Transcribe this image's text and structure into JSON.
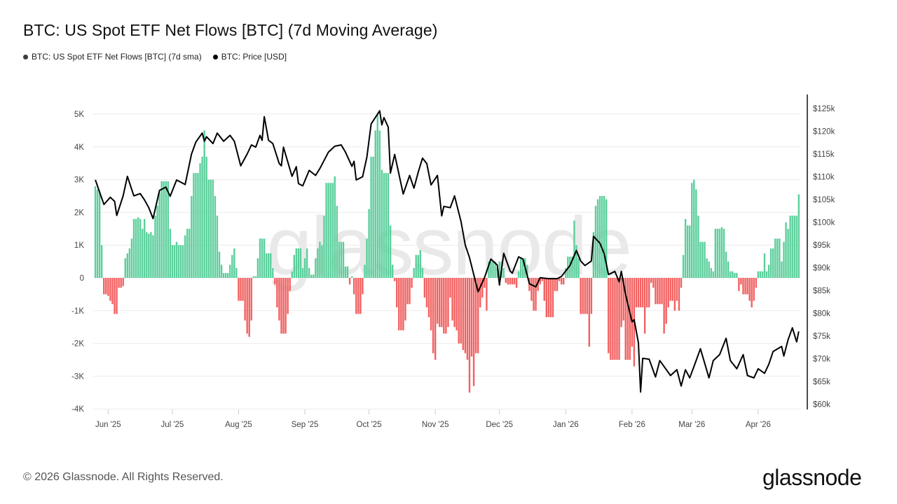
{
  "title": "BTC: US Spot ETF Net Flows [BTC] (7d Moving Average)",
  "legend": [
    {
      "label": "BTC: US Spot ETF Net Flows [BTC] (7d sma)",
      "color": "#3d3d3d"
    },
    {
      "label": "BTC: Price [USD]",
      "color": "#000000"
    }
  ],
  "footer": "© 2026 Glassnode. All Rights Reserved.",
  "logo": "glassnode",
  "watermark": "glassnode",
  "chart_data": {
    "type": "bar+line",
    "title": "BTC: US Spot ETF Net Flows [BTC] (7d Moving Average)",
    "grid": true,
    "legend_position": "top-left",
    "colors": {
      "inflow": "#5ccf9c",
      "outflow": "#f26161",
      "price": "#000000"
    },
    "x_ticks": [
      "Jun '25",
      "Jul '25",
      "Aug '25",
      "Sep '25",
      "Oct '25",
      "Nov '25",
      "Dec '25",
      "Jan '26",
      "Feb '26",
      "Mar '26",
      "Apr '26"
    ],
    "y_left": {
      "ticks": [
        "5K",
        "4K",
        "3K",
        "2K",
        "1K",
        "0",
        "-1K",
        "-2K",
        "-3K",
        "-4K"
      ],
      "range": [
        -4000,
        5000
      ]
    },
    "y_right": {
      "ticks": [
        "$125k",
        "$120k",
        "$115k",
        "$110k",
        "$105k",
        "$100k",
        "$95k",
        "$90k",
        "$85k",
        "$80k",
        "$75k",
        "$70k",
        "$65k",
        "$60k"
      ],
      "range": [
        60000,
        125000
      ],
      "scale": "linear"
    },
    "flows_k_btc_by_month": {
      "2025-05": [
        null,
        null,
        null,
        null,
        null,
        null,
        null,
        null,
        null,
        null,
        null,
        null,
        null,
        null,
        null,
        null,
        null,
        null,
        null,
        null,
        null,
        null,
        null,
        null,
        null,
        2.8,
        2.7,
        2.6,
        1.0,
        -0.5,
        -0.5
      ],
      "2025-06": [
        -0.55,
        -0.7,
        -0.8,
        -1.1,
        -1.1,
        -0.3,
        -0.3,
        -0.25,
        0.6,
        0.75,
        0.9,
        1.2,
        1.8,
        1.8,
        1.85,
        1.8,
        1.5,
        1.8,
        1.4,
        1.35,
        1.4,
        1.3,
        1.9,
        2.2,
        2.6,
        2.95,
        2.95,
        2.95,
        2.95,
        1.5
      ],
      "2025-07": [
        1.0,
        1.0,
        1.1,
        1.0,
        1.0,
        1.0,
        1.3,
        1.5,
        1.5,
        2.5,
        3.2,
        3.2,
        3.2,
        3.5,
        3.7,
        4.5,
        3.7,
        3.0,
        3.0,
        3.0,
        2.5,
        1.9,
        0.8,
        0.4,
        0.15,
        0.15,
        0.15,
        0.4,
        0.7,
        0.9,
        0.3
      ],
      "2025-08": [
        -0.7,
        -0.7,
        -0.7,
        -1.3,
        -1.7,
        -1.8,
        -1.3,
        0.05,
        0.05,
        0.6,
        1.2,
        1.2,
        1.2,
        0.75,
        0.75,
        0.75,
        0.3,
        -0.2,
        -0.9,
        -1.3,
        -1.7,
        -1.7,
        -1.7,
        -1.1,
        -0.4,
        0.2,
        0.7,
        0.9,
        0.9,
        0.9,
        0.3
      ],
      "2025-09": [
        0.6,
        0.9,
        0.3,
        0.1,
        0.1,
        0.6,
        0.9,
        1.1,
        1.0,
        1.9,
        2.9,
        2.9,
        2.9,
        2.9,
        3.1,
        2.2,
        1.1,
        1.1,
        1.1,
        0.35,
        0.35,
        -0.2,
        0.05,
        -0.5,
        -1.1,
        -1.1,
        -1.1,
        -0.5,
        0.4,
        1.2
      ],
      "2025-10": [
        2.1,
        3.7,
        3.7,
        4.5,
        5.0,
        4.5,
        3.3,
        3.2,
        3.2,
        3.2,
        1.6,
        0.4,
        -0.1,
        -0.9,
        -1.6,
        -1.6,
        -1.6,
        -1.3,
        -0.8,
        -0.8,
        -0.3,
        0.3,
        0.7,
        0.7,
        0.85,
        0.3,
        -0.6,
        -0.9,
        -1.2,
        -1.6,
        -2.3
      ],
      "2025-11": [
        -2.5,
        -1.4,
        -1.5,
        -1.5,
        -1.7,
        -1.7,
        -1.5,
        -0.6,
        -1.3,
        -1.5,
        -1.6,
        -2.0,
        -2.0,
        -2.2,
        -2.3,
        -2.5,
        -3.5,
        -2.4,
        -3.3,
        -2.3,
        -2.3,
        -0.9,
        -0.6,
        -0.3,
        -1.0,
        0.5,
        0.5,
        0.5,
        0.5,
        0.3
      ],
      "2025-12": [
        0.5,
        0.5,
        0.3,
        -0.15,
        -0.2,
        -0.2,
        -0.2,
        -0.2,
        -0.3,
        0.2,
        0.6,
        0.6,
        0.6,
        0.4,
        -0.4,
        -0.7,
        -1.0,
        -1.0,
        -0.4,
        -0.2,
        -0.1,
        -0.7,
        -1.2,
        -1.2,
        -1.2,
        -1.2,
        -0.4,
        -0.4,
        -0.1,
        -0.2,
        -0.2
      ],
      "2026-01": [
        0.3,
        0.65,
        0.65,
        0.65,
        1.75,
        1.0,
        0.6,
        -1.1,
        -1.1,
        -1.1,
        -1.1,
        -2.1,
        -1.1,
        1.4,
        2.2,
        2.4,
        2.5,
        2.5,
        2.5,
        2.4,
        -2.3,
        -2.5,
        -2.5,
        -2.5,
        -2.5,
        -2.5,
        -1.5,
        -1.3,
        -2.5,
        -2.5,
        -2.5
      ],
      "2026-02": [
        -2.1,
        -2.7,
        -0.9,
        -0.9,
        -0.9,
        -0.9,
        -1.7,
        -0.9,
        -0.9,
        -0.15,
        -0.3,
        -0.8,
        -0.8,
        -0.8,
        -0.8,
        -1.7,
        -1.4,
        -0.9,
        -0.7,
        -0.7,
        -1.0,
        -0.7,
        -1.0,
        -0.3,
        0.7,
        1.8,
        1.6,
        1.6
      ],
      "2026-03": [
        2.9,
        3.0,
        2.7,
        1.9,
        1.1,
        1.1,
        1.1,
        0.6,
        0.5,
        0.3,
        0.2,
        1.5,
        1.5,
        1.5,
        1.55,
        1.5,
        0.8,
        0.5,
        0.2,
        0.2,
        0.15,
        0.15,
        -0.4,
        -0.2,
        -0.5,
        -0.5,
        -0.5,
        -0.7,
        -0.9,
        -0.7,
        -0.3
      ],
      "2026-04": [
        0.2,
        0.2,
        0.2,
        0.75,
        0.2,
        0.4,
        0.9,
        0.9,
        1.2,
        1.2,
        1.2,
        0.5,
        1.1,
        1.7,
        1.5,
        1.9,
        1.9,
        1.9,
        1.9,
        2.55
      ]
    },
    "price_usd_k": [
      [
        "2025-05-26",
        109.3
      ],
      [
        "2025-05-30",
        103.9
      ],
      [
        "2025-06-02",
        105.5
      ],
      [
        "2025-06-04",
        104.6
      ],
      [
        "2025-06-05",
        101.5
      ],
      [
        "2025-06-08",
        105.8
      ],
      [
        "2025-06-10",
        110.1
      ],
      [
        "2025-06-13",
        105.8
      ],
      [
        "2025-06-16",
        106.3
      ],
      [
        "2025-06-18",
        104.9
      ],
      [
        "2025-06-20",
        103.2
      ],
      [
        "2025-06-22",
        100.8
      ],
      [
        "2025-06-25",
        107.0
      ],
      [
        "2025-06-28",
        107.7
      ],
      [
        "2025-06-30",
        105.7
      ],
      [
        "2025-07-03",
        109.3
      ],
      [
        "2025-07-07",
        108.3
      ],
      [
        "2025-07-10",
        115.0
      ],
      [
        "2025-07-12",
        117.6
      ],
      [
        "2025-07-15",
        119.6
      ],
      [
        "2025-07-16",
        117.8
      ],
      [
        "2025-07-17",
        118.8
      ],
      [
        "2025-07-20",
        117.3
      ],
      [
        "2025-07-22",
        119.6
      ],
      [
        "2025-07-25",
        117.8
      ],
      [
        "2025-07-28",
        119.1
      ],
      [
        "2025-07-30",
        117.8
      ],
      [
        "2025-08-02",
        112.4
      ],
      [
        "2025-08-05",
        115.0
      ],
      [
        "2025-08-07",
        117.0
      ],
      [
        "2025-08-09",
        116.5
      ],
      [
        "2025-08-11",
        119.1
      ],
      [
        "2025-08-12",
        118.0
      ],
      [
        "2025-08-13",
        123.2
      ],
      [
        "2025-08-15",
        118.0
      ],
      [
        "2025-08-17",
        117.3
      ],
      [
        "2025-08-20",
        112.9
      ],
      [
        "2025-08-21",
        112.4
      ],
      [
        "2025-08-22",
        116.5
      ],
      [
        "2025-08-26",
        110.1
      ],
      [
        "2025-08-28",
        112.2
      ],
      [
        "2025-08-29",
        108.5
      ],
      [
        "2025-08-31",
        108.0
      ],
      [
        "2025-09-03",
        111.4
      ],
      [
        "2025-09-06",
        110.3
      ],
      [
        "2025-09-08",
        111.8
      ],
      [
        "2025-09-12",
        115.4
      ],
      [
        "2025-09-15",
        116.7
      ],
      [
        "2025-09-18",
        117.0
      ],
      [
        "2025-09-20",
        115.4
      ],
      [
        "2025-09-23",
        112.3
      ],
      [
        "2025-09-24",
        113.4
      ],
      [
        "2025-09-25",
        109.3
      ],
      [
        "2025-09-28",
        110.0
      ],
      [
        "2025-09-30",
        114.3
      ],
      [
        "2025-10-02",
        121.6
      ],
      [
        "2025-10-06",
        124.5
      ],
      [
        "2025-10-07",
        121.4
      ],
      [
        "2025-10-08",
        123.0
      ],
      [
        "2025-10-10",
        120.9
      ],
      [
        "2025-10-11",
        110.8
      ],
      [
        "2025-10-13",
        114.9
      ],
      [
        "2025-10-17",
        106.2
      ],
      [
        "2025-10-20",
        110.3
      ],
      [
        "2025-10-22",
        107.5
      ],
      [
        "2025-10-24",
        111.0
      ],
      [
        "2025-10-26",
        114.1
      ],
      [
        "2025-10-28",
        112.9
      ],
      [
        "2025-10-30",
        108.2
      ],
      [
        "2025-11-02",
        110.3
      ],
      [
        "2025-11-04",
        101.4
      ],
      [
        "2025-11-05",
        103.5
      ],
      [
        "2025-11-08",
        103.2
      ],
      [
        "2025-11-10",
        105.8
      ],
      [
        "2025-11-13",
        100.2
      ],
      [
        "2025-11-15",
        95.0
      ],
      [
        "2025-11-17",
        92.2
      ],
      [
        "2025-11-21",
        84.7
      ],
      [
        "2025-11-24",
        87.8
      ],
      [
        "2025-11-27",
        91.9
      ],
      [
        "2025-11-30",
        90.6
      ],
      [
        "2025-12-01",
        86.2
      ],
      [
        "2025-12-03",
        93.2
      ],
      [
        "2025-12-06",
        89.3
      ],
      [
        "2025-12-07",
        88.8
      ],
      [
        "2025-12-10",
        92.4
      ],
      [
        "2025-12-12",
        91.9
      ],
      [
        "2025-12-15",
        86.5
      ],
      [
        "2025-12-18",
        85.8
      ],
      [
        "2025-12-20",
        87.8
      ],
      [
        "2025-12-24",
        87.6
      ],
      [
        "2025-12-28",
        87.6
      ],
      [
        "2025-12-30",
        88.1
      ],
      [
        "2026-01-03",
        90.5
      ],
      [
        "2026-01-06",
        93.8
      ],
      [
        "2026-01-08",
        91.5
      ],
      [
        "2026-01-10",
        90.5
      ],
      [
        "2026-01-13",
        91.5
      ],
      [
        "2026-01-14",
        96.9
      ],
      [
        "2026-01-17",
        95.4
      ],
      [
        "2026-01-19",
        93.1
      ],
      [
        "2026-01-21",
        88.5
      ],
      [
        "2026-01-24",
        89.2
      ],
      [
        "2026-01-26",
        86.9
      ],
      [
        "2026-01-27",
        89.2
      ],
      [
        "2026-01-29",
        84.1
      ],
      [
        "2026-02-01",
        78.1
      ],
      [
        "2026-02-02",
        78.6
      ],
      [
        "2026-02-04",
        73.5
      ],
      [
        "2026-02-05",
        62.7
      ],
      [
        "2026-02-06",
        70.1
      ],
      [
        "2026-02-09",
        69.9
      ],
      [
        "2026-02-12",
        66.0
      ],
      [
        "2026-02-14",
        69.6
      ],
      [
        "2026-02-19",
        66.3
      ],
      [
        "2026-02-22",
        67.6
      ],
      [
        "2026-02-24",
        64.0
      ],
      [
        "2026-02-26",
        67.6
      ],
      [
        "2026-02-28",
        65.8
      ],
      [
        "2026-03-02",
        68.3
      ],
      [
        "2026-03-05",
        72.2
      ],
      [
        "2026-03-09",
        65.8
      ],
      [
        "2026-03-11",
        69.6
      ],
      [
        "2026-03-14",
        70.9
      ],
      [
        "2026-03-17",
        74.5
      ],
      [
        "2026-03-19",
        69.6
      ],
      [
        "2026-03-22",
        67.8
      ],
      [
        "2026-03-25",
        70.9
      ],
      [
        "2026-03-27",
        66.3
      ],
      [
        "2026-03-30",
        65.8
      ],
      [
        "2026-04-01",
        67.8
      ],
      [
        "2026-04-04",
        66.8
      ],
      [
        "2026-04-06",
        68.8
      ],
      [
        "2026-04-08",
        71.6
      ],
      [
        "2026-04-12",
        72.7
      ],
      [
        "2026-04-13",
        70.6
      ],
      [
        "2026-04-15",
        74.2
      ],
      [
        "2026-04-17",
        76.8
      ],
      [
        "2026-04-19",
        73.7
      ],
      [
        "2026-04-20",
        76.0
      ]
    ]
  }
}
